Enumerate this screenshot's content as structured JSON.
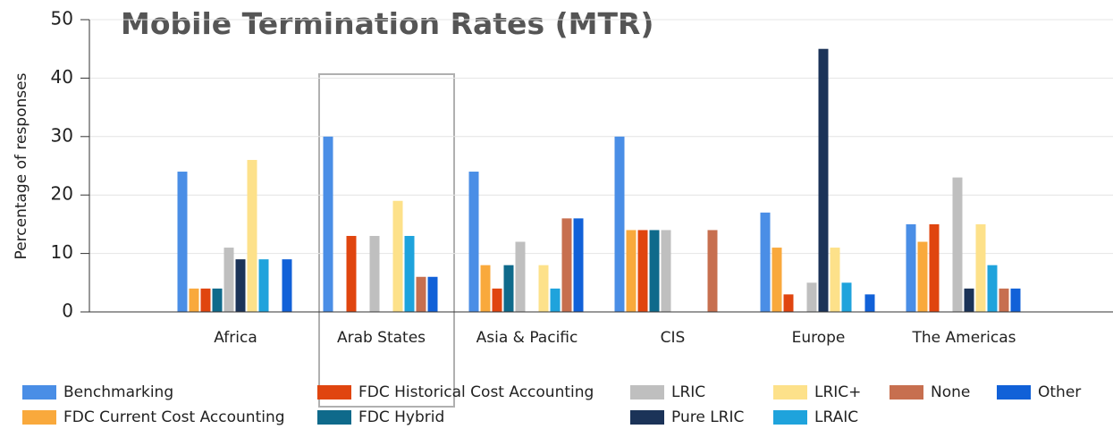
{
  "chart_data": {
    "type": "bar",
    "title": "Mobile Termination Rates (MTR)",
    "y_label": "Percentage of responses",
    "categories": [
      "Africa",
      "Arab States",
      "Asia & Pacific",
      "CIS",
      "Europe",
      "The Americas"
    ],
    "ylim": [
      0,
      50
    ],
    "yticks": [
      0,
      10,
      20,
      30,
      40,
      50
    ],
    "grid": true,
    "series": [
      {
        "name": "Benchmarking",
        "color": "#4a8ee6",
        "values": [
          24,
          30,
          24,
          30,
          17,
          15
        ]
      },
      {
        "name": "FDC Current Cost Accounting",
        "color": "#f9a93c",
        "values": [
          4,
          0,
          8,
          14,
          11,
          12
        ]
      },
      {
        "name": "FDC Historical Cost Accounting",
        "color": "#e0450f",
        "values": [
          4,
          13,
          4,
          14,
          3,
          15
        ]
      },
      {
        "name": "FDC Hybrid",
        "color": "#0f6a8b",
        "values": [
          4,
          0,
          8,
          14,
          0,
          0
        ]
      },
      {
        "name": "LRIC",
        "color": "#bfbfbf",
        "values": [
          11,
          13,
          12,
          14,
          5,
          23
        ]
      },
      {
        "name": "Pure LRIC",
        "color": "#1b3358",
        "values": [
          9,
          0,
          0,
          0,
          45,
          4
        ]
      },
      {
        "name": "LRIC+",
        "color": "#fde18a",
        "values": [
          26,
          19,
          8,
          0,
          11,
          15
        ]
      },
      {
        "name": "LRAIC",
        "color": "#1fa3dc",
        "values": [
          9,
          13,
          4,
          0,
          5,
          8
        ]
      },
      {
        "name": "None",
        "color": "#c76f4f",
        "values": [
          0,
          6,
          16,
          14,
          0,
          4
        ]
      },
      {
        "name": "Other",
        "color": "#1161d8",
        "values": [
          9,
          6,
          16,
          0,
          3,
          4
        ]
      }
    ]
  }
}
